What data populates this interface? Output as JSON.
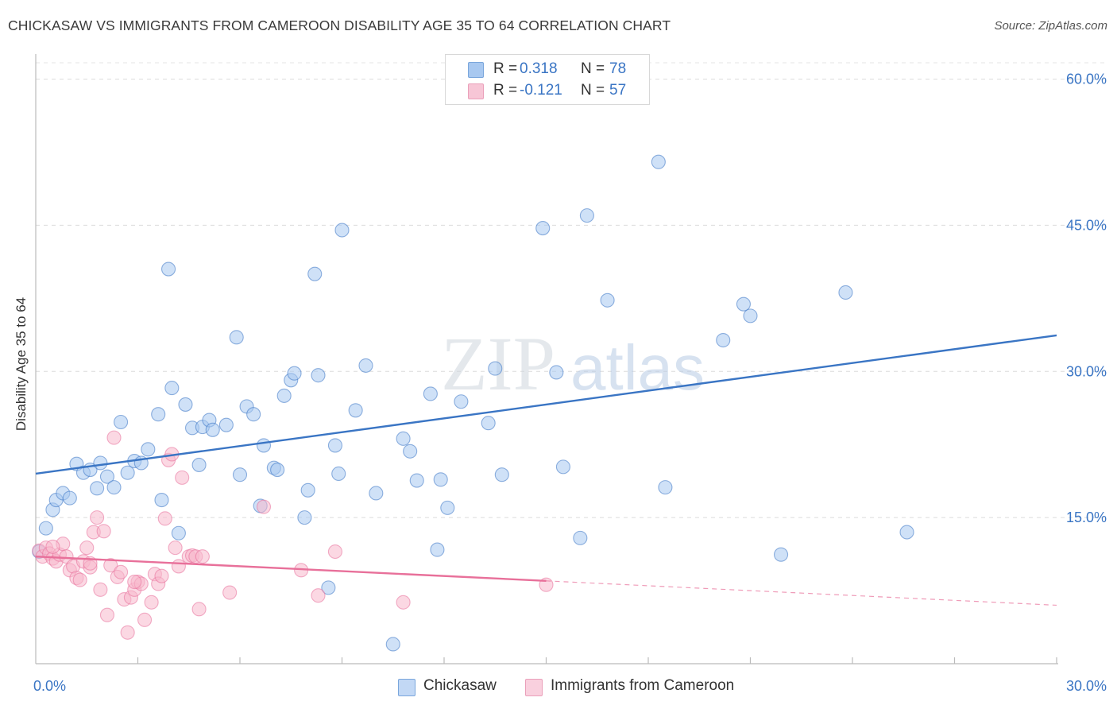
{
  "title": "CHICKASAW VS IMMIGRANTS FROM CAMEROON DISABILITY AGE 35 TO 64 CORRELATION CHART",
  "source": "Source: ZipAtlas.com",
  "watermark": {
    "zip": "ZIP",
    "atlas": "atlas"
  },
  "legend_top": {
    "rows": [
      {
        "swatch_color": "#a8c8f0",
        "label": "R =",
        "r_value": "0.318",
        "n_label": "N =",
        "n_value": "78"
      },
      {
        "swatch_color": "#f7b8cc",
        "label": "R =",
        "r_value": "-0.121",
        "n_label": "N =",
        "n_value": "57"
      }
    ]
  },
  "legend_bottom": {
    "items": [
      {
        "label": "Chickasaw",
        "swatch_color": "#a8c8f0"
      },
      {
        "label": "Immigrants from Cameroon",
        "swatch_color": "#f7b8cc"
      }
    ]
  },
  "chart_data": {
    "type": "scatter",
    "title": "CHICKASAW VS IMMIGRANTS FROM CAMEROON DISABILITY AGE 35 TO 64 CORRELATION CHART",
    "xlabel": "",
    "ylabel": "Disability Age 35 to 64",
    "xlim": [
      0,
      30
    ],
    "ylim": [
      0,
      62
    ],
    "x_tick_labels": [
      {
        "value": 0,
        "label": "0.0%"
      },
      {
        "value": 30,
        "label": "30.0%"
      }
    ],
    "y_tick_labels": [
      {
        "value": 15,
        "label": "15.0%"
      },
      {
        "value": 30,
        "label": "30.0%"
      },
      {
        "value": 45,
        "label": "45.0%"
      },
      {
        "value": 60,
        "label": "60.0%"
      }
    ],
    "y_grid": [
      15,
      30,
      45,
      60
    ],
    "x_minor_ticks": [
      3,
      6,
      9,
      12,
      15,
      18,
      21,
      24,
      27,
      30
    ],
    "series": [
      {
        "name": "Chickasaw",
        "color": "#3a75c4",
        "fill": "#a8c8f0",
        "trend": {
          "x0": 0,
          "y0": 19.5,
          "x1": 30,
          "y1": 33.7,
          "dashed_from": null
        },
        "points": [
          [
            0.1,
            11.5
          ],
          [
            0.3,
            13.9
          ],
          [
            0.5,
            15.8
          ],
          [
            0.6,
            16.8
          ],
          [
            0.8,
            17.5
          ],
          [
            1.0,
            17.0
          ],
          [
            1.2,
            20.5
          ],
          [
            1.4,
            19.6
          ],
          [
            1.6,
            19.9
          ],
          [
            1.8,
            18.0
          ],
          [
            1.9,
            20.6
          ],
          [
            2.1,
            19.2
          ],
          [
            2.3,
            18.1
          ],
          [
            2.5,
            24.8
          ],
          [
            2.7,
            19.6
          ],
          [
            2.9,
            20.8
          ],
          [
            3.1,
            20.6
          ],
          [
            3.3,
            22.0
          ],
          [
            3.6,
            25.6
          ],
          [
            3.7,
            16.8
          ],
          [
            3.9,
            40.5
          ],
          [
            4.0,
            28.3
          ],
          [
            4.2,
            13.4
          ],
          [
            4.4,
            26.6
          ],
          [
            4.6,
            24.2
          ],
          [
            4.8,
            20.4
          ],
          [
            4.9,
            24.3
          ],
          [
            5.1,
            25.0
          ],
          [
            5.2,
            24.0
          ],
          [
            5.6,
            24.5
          ],
          [
            5.9,
            33.5
          ],
          [
            6.0,
            19.4
          ],
          [
            6.2,
            26.4
          ],
          [
            6.4,
            25.6
          ],
          [
            6.6,
            16.2
          ],
          [
            6.7,
            22.4
          ],
          [
            7.0,
            20.1
          ],
          [
            7.1,
            19.9
          ],
          [
            7.3,
            27.5
          ],
          [
            7.5,
            29.1
          ],
          [
            7.6,
            29.8
          ],
          [
            7.9,
            15.0
          ],
          [
            8.0,
            17.8
          ],
          [
            8.2,
            40.0
          ],
          [
            8.3,
            29.6
          ],
          [
            8.6,
            7.8
          ],
          [
            8.8,
            22.4
          ],
          [
            8.9,
            19.5
          ],
          [
            9.0,
            44.5
          ],
          [
            9.4,
            26.0
          ],
          [
            9.7,
            30.6
          ],
          [
            10.0,
            17.5
          ],
          [
            10.5,
            2.0
          ],
          [
            10.8,
            23.1
          ],
          [
            11.0,
            21.8
          ],
          [
            11.2,
            18.8
          ],
          [
            11.6,
            27.7
          ],
          [
            11.8,
            11.7
          ],
          [
            11.9,
            18.9
          ],
          [
            12.1,
            16.0
          ],
          [
            12.5,
            26.9
          ],
          [
            13.3,
            24.7
          ],
          [
            13.5,
            30.3
          ],
          [
            13.7,
            19.4
          ],
          [
            14.9,
            44.7
          ],
          [
            15.3,
            29.9
          ],
          [
            15.5,
            20.2
          ],
          [
            16.0,
            12.9
          ],
          [
            16.2,
            46.0
          ],
          [
            16.8,
            37.3
          ],
          [
            18.3,
            51.5
          ],
          [
            18.5,
            18.1
          ],
          [
            20.2,
            33.2
          ],
          [
            20.8,
            36.9
          ],
          [
            21.0,
            35.7
          ],
          [
            21.9,
            11.2
          ],
          [
            23.8,
            38.1
          ],
          [
            25.6,
            13.5
          ]
        ]
      },
      {
        "name": "Immigrants from Cameroon",
        "color": "#e8709a",
        "fill": "#f7b8cc",
        "trend": {
          "x0": 0,
          "y0": 11.0,
          "x1": 30,
          "y1": 6.0,
          "dashed_from": 15.0
        },
        "points": [
          [
            0.1,
            11.6
          ],
          [
            0.2,
            11.0
          ],
          [
            0.3,
            11.9
          ],
          [
            0.4,
            11.3
          ],
          [
            0.5,
            10.8
          ],
          [
            0.6,
            10.5
          ],
          [
            0.7,
            11.2
          ],
          [
            0.8,
            12.3
          ],
          [
            0.9,
            11.0
          ],
          [
            1.0,
            9.6
          ],
          [
            1.1,
            10.0
          ],
          [
            1.2,
            8.8
          ],
          [
            1.3,
            8.6
          ],
          [
            1.4,
            10.5
          ],
          [
            1.5,
            11.9
          ],
          [
            1.6,
            9.9
          ],
          [
            1.7,
            13.5
          ],
          [
            1.8,
            15.0
          ],
          [
            1.9,
            7.6
          ],
          [
            2.0,
            13.6
          ],
          [
            2.1,
            5.0
          ],
          [
            2.2,
            10.1
          ],
          [
            2.3,
            23.2
          ],
          [
            2.4,
            8.9
          ],
          [
            2.5,
            9.4
          ],
          [
            2.6,
            6.6
          ],
          [
            2.7,
            3.2
          ],
          [
            2.8,
            6.8
          ],
          [
            2.9,
            7.6
          ],
          [
            3.0,
            8.4
          ],
          [
            3.1,
            8.2
          ],
          [
            3.2,
            4.5
          ],
          [
            3.4,
            6.3
          ],
          [
            3.5,
            9.2
          ],
          [
            3.6,
            8.2
          ],
          [
            3.7,
            9.0
          ],
          [
            3.8,
            14.9
          ],
          [
            3.9,
            20.9
          ],
          [
            4.0,
            21.5
          ],
          [
            4.1,
            11.9
          ],
          [
            4.2,
            10.0
          ],
          [
            4.3,
            19.1
          ],
          [
            4.5,
            11.0
          ],
          [
            4.6,
            11.1
          ],
          [
            4.7,
            11.0
          ],
          [
            4.8,
            5.6
          ],
          [
            4.9,
            11.0
          ],
          [
            5.7,
            7.3
          ],
          [
            6.7,
            16.1
          ],
          [
            7.8,
            9.6
          ],
          [
            8.3,
            7.0
          ],
          [
            8.8,
            11.5
          ],
          [
            10.8,
            6.3
          ],
          [
            15.0,
            8.1
          ],
          [
            0.5,
            12.0
          ],
          [
            1.6,
            10.3
          ],
          [
            2.9,
            8.4
          ]
        ]
      }
    ]
  }
}
